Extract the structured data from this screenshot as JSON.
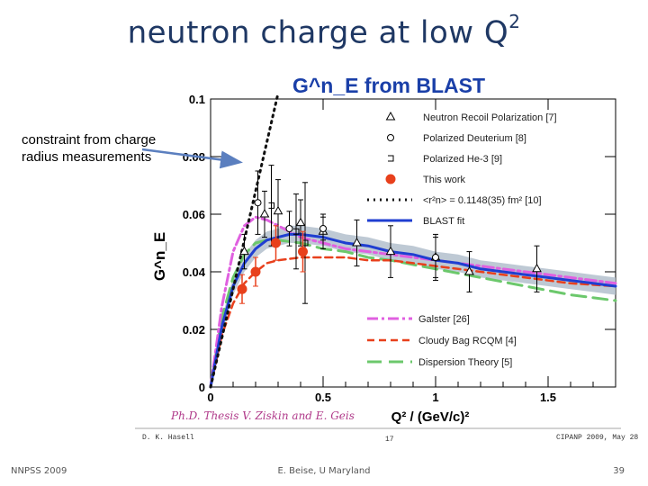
{
  "slide": {
    "title": "neutron charge at low Q",
    "title_sup": "2",
    "side_note": "constraint from charge radius measurements",
    "footer_left": "NNPSS 2009",
    "footer_center": "E. Beise, U Maryland",
    "page": "39"
  },
  "figure": {
    "credit": "Ph.D. Thesis V. Ziskin and E. Geis",
    "bottom_left": "D. K. Hasell",
    "bottom_center": "17",
    "bottom_right": "CIPANP 2009, May 28"
  },
  "colors": {
    "title": "#1f3864",
    "figure_title": "#1a3fa8",
    "arrow": "#5b7fbf",
    "this_work": "#e8401c",
    "blast_fit": "#1f3ed1",
    "band": "#b3bfcc",
    "galster": "#e060e0",
    "cloudy_bag": "#e8401c",
    "dispersion": "#6cc86c",
    "credit": "#b03a8a"
  },
  "chart_data": {
    "type": "scatter",
    "title": "G^n_E from BLAST",
    "xlabel": "Q² / (GeV/c)²",
    "ylabel": "G^n_E",
    "xlim": [
      0,
      1.8
    ],
    "ylim": [
      0,
      0.1
    ],
    "xticks": [
      "0",
      "0.5",
      "1",
      "1.5"
    ],
    "yticks": [
      "0",
      "0.02",
      "0.04",
      "0.06",
      "0.08",
      "0.1"
    ],
    "legend_position": "top-right",
    "legend": [
      {
        "label": "Neutron Recoil Polarization [7]",
        "kind": "marker",
        "symbol": "triangle"
      },
      {
        "label": "Polarized Deuterium [8]",
        "kind": "marker",
        "symbol": "circle"
      },
      {
        "label": "Polarized He-3 [9]",
        "kind": "marker",
        "symbol": "bracket"
      },
      {
        "label": "This work",
        "kind": "marker",
        "symbol": "dot"
      },
      {
        "label": "<r²n> = 0.1148(35) fm² [10]",
        "kind": "line",
        "style": "dotted"
      },
      {
        "label": "BLAST fit",
        "kind": "line",
        "style": "solid"
      },
      {
        "label": "Galster [26]",
        "kind": "line",
        "style": "dashdot"
      },
      {
        "label": "Cloudy Bag RCQM [4]",
        "kind": "line",
        "style": "dashed"
      },
      {
        "label": "Dispersion Theory [5]",
        "kind": "line",
        "style": "longdash"
      }
    ],
    "series": [
      {
        "name": "This work",
        "symbol": "dot",
        "points": [
          [
            0.14,
            0.034,
            0.005
          ],
          [
            0.2,
            0.04,
            0.005
          ],
          [
            0.29,
            0.05,
            0.006
          ],
          [
            0.41,
            0.047,
            0.007
          ]
        ]
      },
      {
        "name": "Neutron Recoil Polarization [7]",
        "symbol": "triangle",
        "points": [
          [
            0.15,
            0.047,
            0.006
          ],
          [
            0.24,
            0.06,
            0.008
          ],
          [
            0.3,
            0.061,
            0.011
          ],
          [
            0.4,
            0.057,
            0.008
          ],
          [
            0.5,
            0.054,
            0.006
          ],
          [
            0.65,
            0.05,
            0.008
          ],
          [
            0.8,
            0.047,
            0.009
          ],
          [
            1.0,
            0.045,
            0.008
          ],
          [
            1.15,
            0.04,
            0.007
          ],
          [
            1.45,
            0.041,
            0.008
          ]
        ]
      },
      {
        "name": "Polarized Deuterium [8]",
        "symbol": "circle",
        "points": [
          [
            0.21,
            0.064,
            0.011
          ],
          [
            0.35,
            0.055,
            0.006
          ],
          [
            0.5,
            0.055,
            0.004
          ],
          [
            1.0,
            0.045,
            0.007
          ]
        ]
      },
      {
        "name": "Polarized He-3 [9]",
        "symbol": "bracket",
        "points": [
          [
            0.27,
            0.063,
            0.014
          ],
          [
            0.38,
            0.054,
            0.013
          ],
          [
            0.42,
            0.05,
            0.021
          ]
        ]
      }
    ],
    "curves": [
      {
        "name": "<r²n> = 0.1148(35) fm² [10]",
        "style": "dotted",
        "x": [
          0,
          0.2,
          0.3
        ],
        "y": [
          0,
          0.068,
          0.102
        ]
      },
      {
        "name": "BLAST fit",
        "style": "solid",
        "x": [
          0,
          0.05,
          0.1,
          0.15,
          0.2,
          0.25,
          0.3,
          0.35,
          0.4,
          0.5,
          0.6,
          0.7,
          0.8,
          0.9,
          1.0,
          1.1,
          1.2,
          1.3,
          1.4,
          1.5,
          1.6,
          1.7,
          1.8
        ],
        "y": [
          0,
          0.021,
          0.035,
          0.043,
          0.048,
          0.051,
          0.052,
          0.053,
          0.053,
          0.052,
          0.05,
          0.049,
          0.047,
          0.046,
          0.044,
          0.043,
          0.041,
          0.04,
          0.039,
          0.038,
          0.037,
          0.036,
          0.035
        ]
      },
      {
        "name": "Galster [26]",
        "style": "dashdot",
        "x": [
          0,
          0.05,
          0.1,
          0.15,
          0.2,
          0.25,
          0.3,
          0.4,
          0.5,
          0.6,
          0.7,
          0.8,
          1.0,
          1.2,
          1.4,
          1.6,
          1.8
        ],
        "y": [
          0,
          0.028,
          0.047,
          0.056,
          0.059,
          0.058,
          0.056,
          0.052,
          0.05,
          0.048,
          0.047,
          0.046,
          0.044,
          0.042,
          0.04,
          0.038,
          0.036
        ]
      },
      {
        "name": "Cloudy Bag RCQM [4]",
        "style": "dashed",
        "x": [
          0,
          0.05,
          0.1,
          0.15,
          0.2,
          0.25,
          0.3,
          0.4,
          0.5,
          0.6,
          0.7,
          0.8,
          1.0,
          1.2,
          1.4,
          1.6,
          1.8
        ],
        "y": [
          0,
          0.018,
          0.029,
          0.036,
          0.04,
          0.043,
          0.044,
          0.045,
          0.045,
          0.045,
          0.044,
          0.044,
          0.042,
          0.04,
          0.038,
          0.036,
          0.035
        ]
      },
      {
        "name": "Dispersion Theory [5]",
        "style": "longdash",
        "x": [
          0,
          0.05,
          0.1,
          0.15,
          0.2,
          0.25,
          0.3,
          0.4,
          0.5,
          0.6,
          0.7,
          0.8,
          1.0,
          1.2,
          1.4,
          1.6,
          1.8
        ],
        "y": [
          0,
          0.024,
          0.038,
          0.046,
          0.05,
          0.051,
          0.051,
          0.05,
          0.048,
          0.047,
          0.045,
          0.044,
          0.041,
          0.038,
          0.035,
          0.032,
          0.03
        ]
      }
    ],
    "annotation": "constraint from charge radius measurements"
  }
}
